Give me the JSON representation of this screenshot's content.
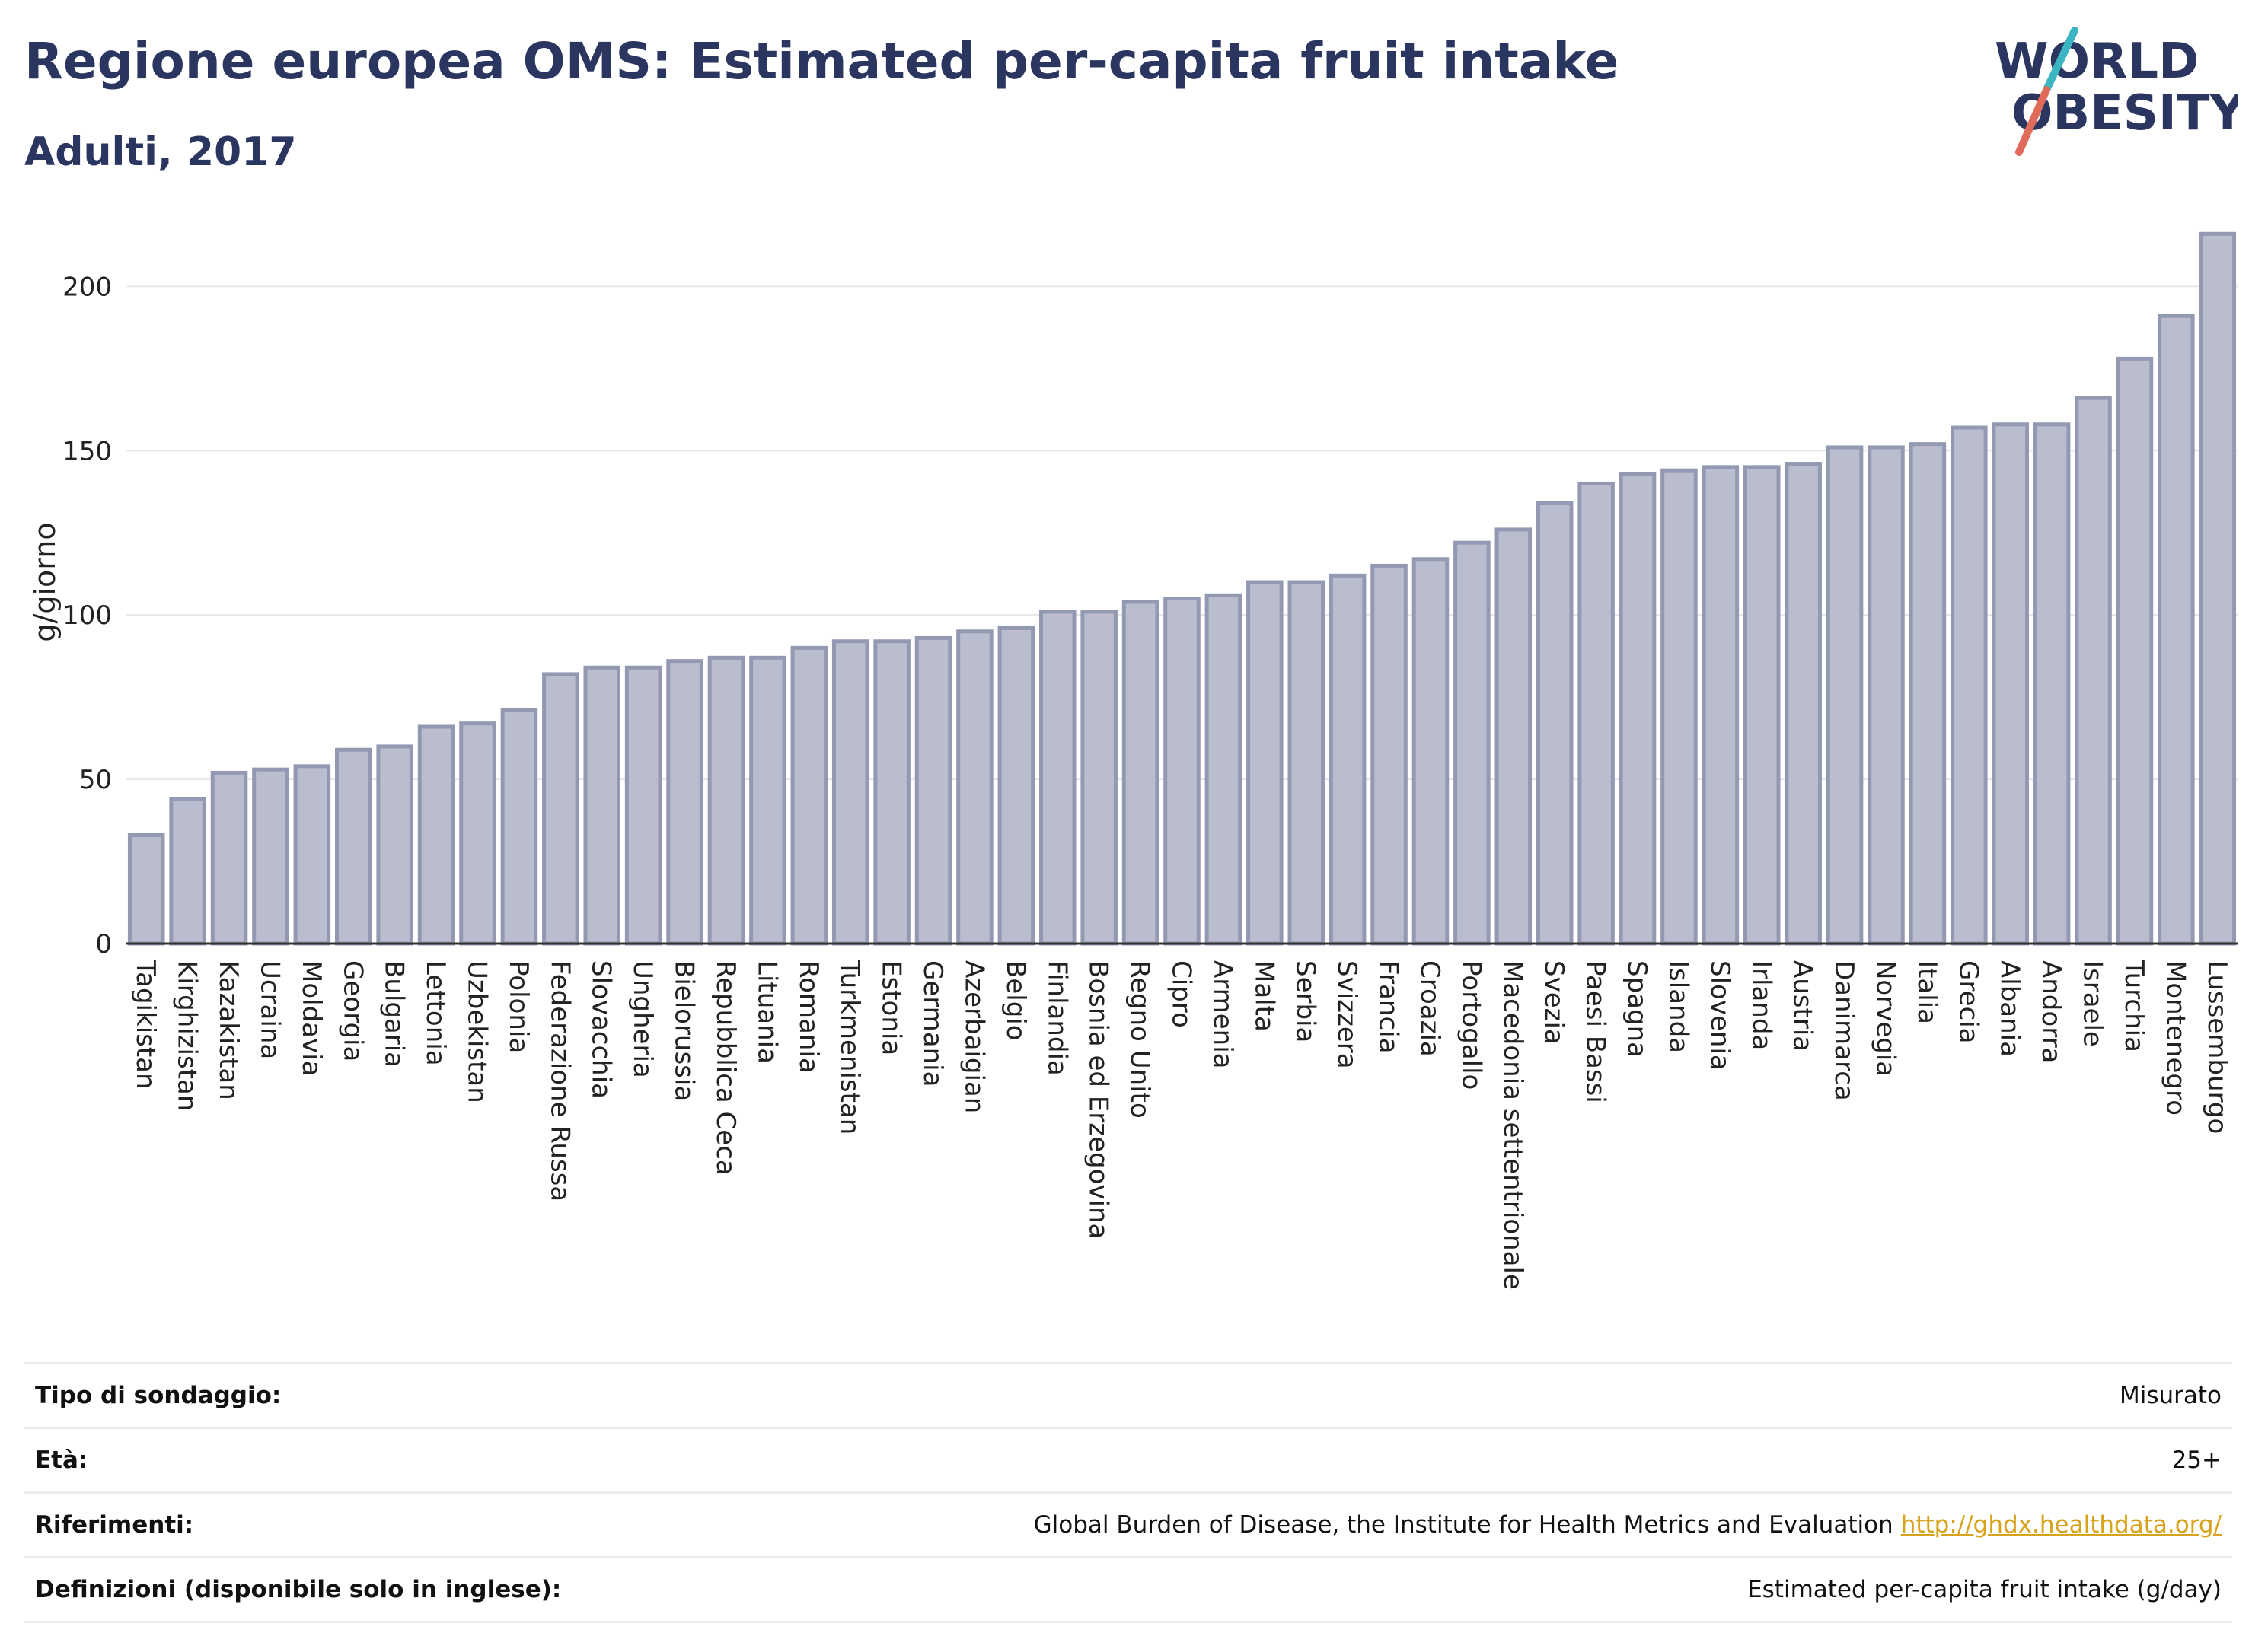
{
  "header": {
    "title": "Regione europea OMS: Estimated per-capita fruit intake",
    "subtitle": "Adulti, 2017"
  },
  "logo": {
    "line1": "WORLD",
    "line2": "OBESITY",
    "accent_colors": [
      "#3ab5c1",
      "#e06b5a"
    ]
  },
  "colors": {
    "bar_fill": "#b9bdcd",
    "bar_stroke": "#9499b3",
    "title": "#2b3660",
    "grid": "#e6e6e6"
  },
  "chart_data": {
    "type": "bar",
    "ylabel": "g/giorno",
    "ylim": [
      0,
      220
    ],
    "yticks": [
      0,
      50,
      100,
      150,
      200
    ],
    "grid": true,
    "categories": [
      "Tagikistan",
      "Kirghizistan",
      "Kazakistan",
      "Ucraina",
      "Moldavia",
      "Georgia",
      "Bulgaria",
      "Lettonia",
      "Uzbekistan",
      "Polonia",
      "Federazione Russa",
      "Slovacchia",
      "Ungheria",
      "Bielorussia",
      "Repubblica Ceca",
      "Lituania",
      "Romania",
      "Turkmenistan",
      "Estonia",
      "Germania",
      "Azerbaigian",
      "Belgio",
      "Finlandia",
      "Bosnia ed Erzegovina",
      "Regno Unito",
      "Cipro",
      "Armenia",
      "Malta",
      "Serbia",
      "Svizzera",
      "Francia",
      "Croazia",
      "Portogallo",
      "Macedonia settentrionale",
      "Svezia",
      "Paesi Bassi",
      "Spagna",
      "Islanda",
      "Slovenia",
      "Irlanda",
      "Austria",
      "Danimarca",
      "Norvegia",
      "Italia",
      "Grecia",
      "Albania",
      "Andorra",
      "Israele",
      "Turchia",
      "Montenegro",
      "Lussemburgo"
    ],
    "values": [
      33,
      44,
      52,
      53,
      54,
      59,
      60,
      66,
      67,
      71,
      82,
      84,
      84,
      86,
      87,
      87,
      90,
      92,
      92,
      93,
      95,
      96,
      101,
      101,
      104,
      105,
      106,
      110,
      110,
      112,
      115,
      117,
      122,
      126,
      134,
      140,
      143,
      144,
      145,
      145,
      146,
      151,
      151,
      152,
      157,
      158,
      158,
      166,
      178,
      191,
      216
    ]
  },
  "meta": [
    {
      "key": "Tipo di sondaggio:",
      "value": "Misurato"
    },
    {
      "key": "Età:",
      "value": "25+"
    },
    {
      "key": "Riferimenti:",
      "value": "Global Burden of Disease, the Institute for Health Metrics and Evaluation",
      "link": "http://ghdx.healthdata.org/"
    },
    {
      "key": "Definizioni (disponibile solo in inglese):",
      "value": "Estimated per-capita fruit intake (g/day)"
    }
  ]
}
